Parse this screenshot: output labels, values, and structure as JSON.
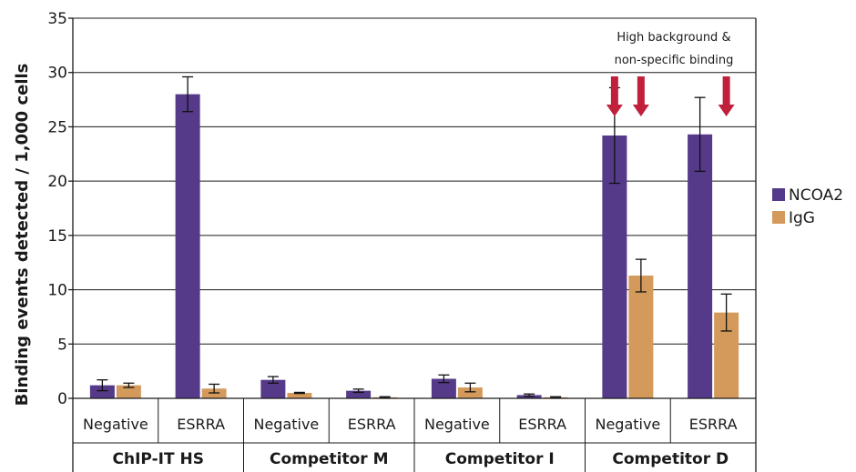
{
  "chart_data": {
    "type": "bar",
    "ylabel": "Binding events detected / 1,000 cells",
    "ylim": [
      0,
      35
    ],
    "yticks": [
      0,
      5,
      10,
      15,
      20,
      25,
      30,
      35
    ],
    "grid": true,
    "legend_position": "right",
    "groups": [
      {
        "label": "ChIP-IT HS",
        "categories": [
          "Negative",
          "ESRRA"
        ]
      },
      {
        "label": "Competitor M",
        "categories": [
          "Negative",
          "ESRRA"
        ]
      },
      {
        "label": "Competitor I",
        "categories": [
          "Negative",
          "ESRRA"
        ]
      },
      {
        "label": "Competitor D",
        "categories": [
          "Negative",
          "ESRRA"
        ]
      }
    ],
    "series": [
      {
        "name": "NCOA2",
        "color": "#553a8a",
        "values": [
          1.2,
          28.0,
          1.7,
          0.7,
          1.8,
          0.3,
          24.2,
          24.3
        ],
        "errors": [
          0.5,
          1.6,
          0.3,
          0.15,
          0.35,
          0.1,
          4.4,
          3.4
        ]
      },
      {
        "name": "IgG",
        "color": "#d39a5c",
        "values": [
          1.2,
          0.9,
          0.5,
          0.1,
          1.0,
          0.1,
          11.3,
          7.9
        ],
        "errors": [
          0.2,
          0.4,
          0.05,
          0.05,
          0.4,
          0.05,
          1.5,
          1.7
        ]
      }
    ],
    "annotation": {
      "lines": [
        "High background &",
        "non-specific binding"
      ],
      "arrow_color": "#c0203c"
    }
  }
}
